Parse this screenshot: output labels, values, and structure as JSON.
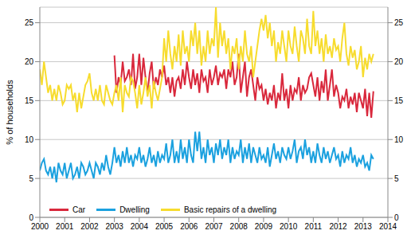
{
  "chart_data": {
    "type": "line",
    "y_label": "% of households",
    "legend": "lower left",
    "grid": true,
    "x": [
      2000,
      2000.083,
      2000.167,
      2000.25,
      2000.333,
      2000.417,
      2000.5,
      2000.583,
      2000.667,
      2000.75,
      2000.833,
      2000.917,
      2001,
      2001.083,
      2001.167,
      2001.25,
      2001.333,
      2001.417,
      2001.5,
      2001.583,
      2001.667,
      2001.75,
      2001.833,
      2001.917,
      2002,
      2002.083,
      2002.167,
      2002.25,
      2002.333,
      2002.417,
      2002.5,
      2002.583,
      2002.667,
      2002.75,
      2002.833,
      2002.917,
      2003,
      2003.083,
      2003.167,
      2003.25,
      2003.333,
      2003.417,
      2003.5,
      2003.583,
      2003.667,
      2003.75,
      2003.833,
      2003.917,
      2004,
      2004.083,
      2004.167,
      2004.25,
      2004.333,
      2004.417,
      2004.5,
      2004.583,
      2004.667,
      2004.75,
      2004.833,
      2004.917,
      2005,
      2005.083,
      2005.167,
      2005.25,
      2005.333,
      2005.417,
      2005.5,
      2005.583,
      2005.667,
      2005.75,
      2005.833,
      2005.917,
      2006,
      2006.083,
      2006.167,
      2006.25,
      2006.333,
      2006.417,
      2006.5,
      2006.583,
      2006.667,
      2006.75,
      2006.833,
      2006.917,
      2007,
      2007.083,
      2007.167,
      2007.25,
      2007.333,
      2007.417,
      2007.5,
      2007.583,
      2007.667,
      2007.75,
      2007.833,
      2007.917,
      2008,
      2008.083,
      2008.167,
      2008.25,
      2008.333,
      2008.417,
      2008.5,
      2008.583,
      2008.667,
      2008.75,
      2008.833,
      2008.917,
      2009,
      2009.083,
      2009.167,
      2009.25,
      2009.333,
      2009.417,
      2009.5,
      2009.583,
      2009.667,
      2009.75,
      2009.833,
      2009.917,
      2010,
      2010.083,
      2010.167,
      2010.25,
      2010.333,
      2010.417,
      2010.5,
      2010.583,
      2010.667,
      2010.75,
      2010.833,
      2010.917,
      2011,
      2011.083,
      2011.167,
      2011.25,
      2011.333,
      2011.417,
      2011.5,
      2011.583,
      2011.667,
      2011.75,
      2011.833,
      2011.917,
      2012,
      2012.083,
      2012.167,
      2012.25,
      2012.333,
      2012.417,
      2012.5,
      2012.583,
      2012.667,
      2012.75,
      2012.833,
      2012.917,
      2013,
      2013.083,
      2013.167,
      2013.25,
      2013.333,
      2013.417
    ],
    "series": [
      {
        "name": "Car",
        "color": "#d9283c",
        "values": [
          null,
          null,
          null,
          null,
          null,
          null,
          null,
          null,
          null,
          null,
          null,
          null,
          null,
          null,
          null,
          null,
          null,
          null,
          null,
          null,
          null,
          null,
          null,
          null,
          null,
          null,
          null,
          null,
          null,
          null,
          null,
          null,
          null,
          null,
          null,
          null,
          20.8,
          16,
          18,
          17,
          20,
          17.5,
          18,
          19,
          17,
          21,
          16.5,
          18,
          21,
          17,
          20.5,
          18,
          16,
          18.5,
          20,
          16.5,
          18,
          17,
          19,
          18,
          19.5,
          17,
          18,
          16,
          18,
          15.5,
          17.5,
          18,
          16.5,
          19,
          17,
          20,
          18,
          16.5,
          19,
          17,
          18.5,
          16,
          19,
          17.5,
          18,
          16,
          19,
          17,
          18,
          19.5,
          17,
          18.5,
          18,
          19,
          16.5,
          19,
          18,
          20,
          17,
          18,
          21,
          16,
          18,
          20,
          15.5,
          18,
          19,
          17,
          15,
          18,
          16.5,
          17,
          15,
          16.5,
          14.5,
          16,
          15,
          17,
          14,
          16,
          15,
          18.5,
          15,
          16.5,
          14,
          17,
          15,
          16.5,
          16,
          18,
          15,
          17,
          16,
          16.5,
          18,
          18.5,
          17,
          15.5,
          18,
          15,
          17.5,
          16,
          19,
          15,
          17,
          19,
          15.5,
          17,
          16,
          14,
          15.5,
          15,
          16.5,
          14,
          15.5,
          14.5,
          16,
          13.5,
          16,
          15,
          14,
          16.5,
          13,
          16,
          12.8,
          16.2
        ]
      },
      {
        "name": "Dwelling",
        "color": "#1ba1df",
        "values": [
          6,
          7,
          7.5,
          6,
          5.5,
          6.5,
          5,
          6.5,
          4.5,
          7,
          6,
          5.5,
          7,
          5,
          6,
          7,
          5,
          5.5,
          6.5,
          5,
          7,
          6.5,
          5.5,
          6,
          7,
          6,
          5,
          7,
          6.5,
          5.5,
          7,
          6,
          8,
          6.5,
          5.5,
          7,
          9,
          7,
          8,
          6.5,
          8.5,
          7,
          9,
          7,
          8,
          6.5,
          8,
          7.5,
          9,
          7,
          8,
          6.5,
          7.5,
          9,
          7,
          8,
          6.5,
          8.5,
          7,
          8,
          7.5,
          9.5,
          7,
          8,
          10,
          7,
          8.5,
          7,
          10,
          7.5,
          9,
          7,
          10,
          8,
          7,
          11,
          8.5,
          11,
          7.5,
          9,
          7,
          10,
          8,
          9,
          7,
          9.5,
          8,
          10,
          7.5,
          9,
          8,
          10,
          7,
          9,
          7.5,
          8.5,
          8,
          10,
          7,
          9,
          7.5,
          9.5,
          7,
          9,
          8,
          7,
          9,
          7.5,
          8,
          7,
          9,
          6.5,
          8,
          9.5,
          7.5,
          8.5,
          7,
          9,
          8,
          7.5,
          9,
          7.5,
          8.5,
          10,
          7,
          8.5,
          9,
          7.5,
          10,
          8,
          9,
          7,
          8.5,
          7,
          9.5,
          8,
          7,
          9,
          7.5,
          8.5,
          7,
          8,
          9,
          7.5,
          8,
          6.5,
          8.5,
          7,
          8,
          7.5,
          9,
          7,
          8,
          6.5,
          7.5,
          7,
          8,
          6.5,
          7,
          6,
          8,
          7.5
        ]
      },
      {
        "name": "Basic repairs of a dwelling",
        "color": "#f7dc2e",
        "values": [
          19,
          17,
          20,
          18,
          16,
          17,
          15,
          16.5,
          15,
          17,
          16,
          14.5,
          15,
          17,
          16.5,
          17,
          15,
          16,
          13.5,
          16,
          14,
          15.5,
          17,
          17.5,
          18.5,
          16,
          15,
          16.5,
          15,
          17,
          15,
          14.5,
          17,
          16,
          15,
          14.5,
          16,
          17,
          15,
          18,
          13.5,
          17,
          16,
          15.5,
          18,
          17.5,
          16,
          14,
          17,
          14.5,
          16,
          18,
          15.5,
          17,
          14,
          17.5,
          16,
          15,
          16.5,
          18,
          23,
          20,
          24,
          21,
          19,
          22,
          20,
          23.5,
          19.5,
          24,
          21,
          22,
          20,
          24,
          22,
          25,
          21,
          24,
          19.5,
          22,
          20,
          24,
          21,
          23,
          22,
          27,
          20.5,
          25,
          22,
          24,
          21,
          23,
          19,
          22,
          21,
          23,
          19,
          22,
          20,
          24,
          21,
          20,
          22,
          18,
          20,
          22,
          24,
          25.5,
          24,
          26,
          23,
          25,
          22,
          24,
          20,
          22.5,
          21,
          24,
          22,
          20,
          24,
          22,
          21,
          24.5,
          22,
          20,
          24,
          23,
          21,
          25.5,
          22,
          21,
          26.5,
          22,
          24,
          21,
          23,
          20,
          23.5,
          21,
          22,
          20.5,
          23,
          21.5,
          22,
          20,
          23,
          25,
          21,
          19.5,
          22,
          20.5,
          21.5,
          19,
          20,
          22,
          18,
          20.5,
          19,
          21,
          20,
          21
        ]
      }
    ],
    "xlim": [
      2000,
      2014
    ],
    "xticks": [
      2000,
      2001,
      2002,
      2003,
      2004,
      2005,
      2006,
      2007,
      2008,
      2009,
      2010,
      2011,
      2012,
      2013,
      2014
    ],
    "ylim": [
      0,
      27
    ],
    "yticks": [
      0,
      5,
      10,
      15,
      20,
      25
    ]
  }
}
